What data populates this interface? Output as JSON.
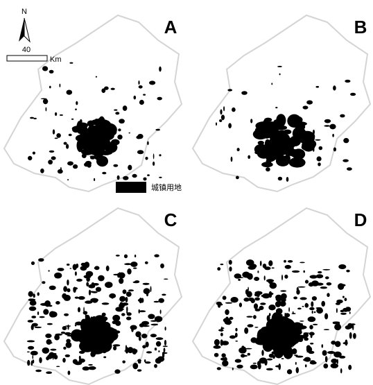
{
  "north_arrow": {
    "label": "N",
    "scale_value": "40",
    "scale_unit": "Km"
  },
  "panels": [
    {
      "label": "A"
    },
    {
      "label": "B"
    },
    {
      "label": "C"
    },
    {
      "label": "D"
    }
  ],
  "legend": {
    "label": "城镇用地"
  }
}
